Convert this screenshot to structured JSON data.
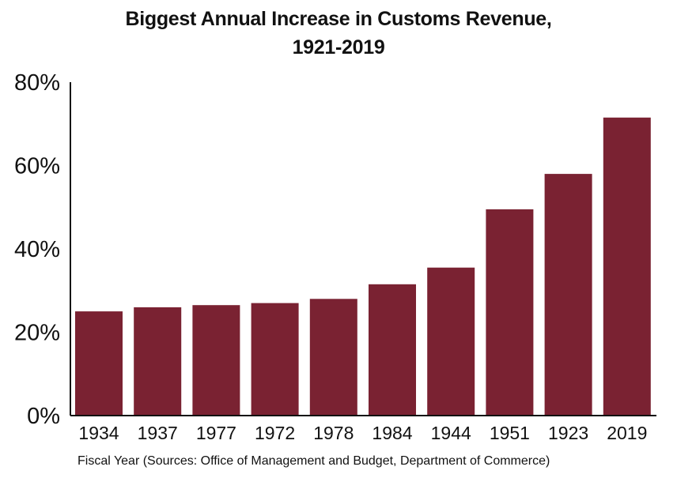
{
  "chart_data": {
    "type": "bar",
    "title": "Biggest Annual Increase in Customs Revenue,",
    "title_line2": "1921-2019",
    "xlabel": "Fiscal Year (Sources: Office of Management and Budget, Department of Commerce)",
    "ylabel": "",
    "categories": [
      "1934",
      "1937",
      "1977",
      "1972",
      "1978",
      "1984",
      "1944",
      "1951",
      "1923",
      "2019"
    ],
    "values": [
      25,
      26,
      26.5,
      27,
      28,
      31.5,
      35.5,
      49.5,
      58,
      71.5
    ],
    "ylim": [
      0,
      80
    ],
    "yticks": [
      0,
      20,
      40,
      60,
      80
    ],
    "ytick_labels": [
      "0%",
      "20%",
      "40%",
      "60%",
      "80%"
    ],
    "bar_color": "#7a2232",
    "grid": false,
    "legend": "none"
  }
}
